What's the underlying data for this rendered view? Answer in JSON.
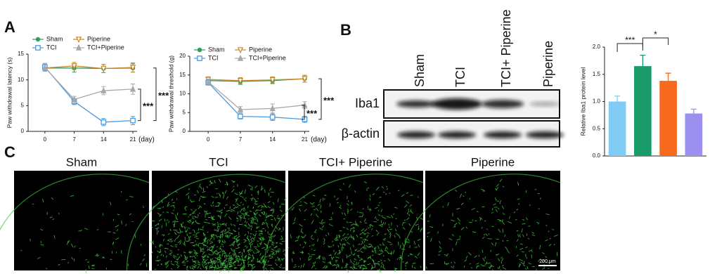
{
  "panel_labels": [
    "A",
    "B",
    "C"
  ],
  "chart_data": [
    {
      "type": "line",
      "ylabel": "Paw withdrawal latency (s)",
      "xlabel": "(day)",
      "x": [
        0,
        7,
        14,
        21
      ],
      "xlim": [
        -4,
        22
      ],
      "xticks": [
        0,
        7,
        14,
        21
      ],
      "ylim": [
        0,
        15
      ],
      "yticks": [
        0,
        5,
        10,
        15
      ],
      "series": [
        {
          "name": "Sham",
          "color": "#2e9e5b",
          "marker": "circle",
          "values": [
            12.3,
            12.3,
            12.2,
            12.3
          ],
          "errors": [
            0.6,
            0.8,
            0.8,
            0.8
          ]
        },
        {
          "name": "Piperine",
          "color": "#c8882a",
          "marker": "triangle-down",
          "values": [
            12.3,
            12.7,
            12.2,
            12.4
          ],
          "errors": [
            0.6,
            0.7,
            0.8,
            0.9
          ]
        },
        {
          "name": "TCI",
          "color": "#4a9be0",
          "marker": "square",
          "values": [
            12.5,
            5.8,
            1.8,
            2.1
          ],
          "errors": [
            0.7,
            0.6,
            0.7,
            0.8
          ]
        },
        {
          "name": "TCI+Piperine",
          "color": "#a8a8a8",
          "marker": "triangle-up",
          "values": [
            12.4,
            6.2,
            7.9,
            8.2
          ],
          "errors": [
            0.7,
            0.6,
            0.8,
            1.0
          ]
        }
      ],
      "annotations": [
        "***",
        "***"
      ]
    },
    {
      "type": "line",
      "ylabel": "Paw withdrawal threshold (g)",
      "xlabel": "(day)",
      "x": [
        0,
        7,
        14,
        21
      ],
      "xlim": [
        -4,
        22
      ],
      "xticks": [
        0,
        7,
        14,
        21
      ],
      "ylim": [
        0,
        20
      ],
      "yticks": [
        0,
        5,
        10,
        15,
        20
      ],
      "series": [
        {
          "name": "Sham",
          "color": "#2e9e5b",
          "marker": "circle",
          "values": [
            13.5,
            13.3,
            13.5,
            14.0
          ],
          "errors": [
            0.7,
            0.8,
            0.8,
            0.9
          ]
        },
        {
          "name": "Piperine",
          "color": "#c8882a",
          "marker": "triangle-down",
          "values": [
            13.8,
            13.5,
            13.7,
            14.0
          ],
          "errors": [
            0.7,
            0.8,
            0.8,
            0.9
          ]
        },
        {
          "name": "TCI",
          "color": "#4a9be0",
          "marker": "square",
          "values": [
            13.0,
            4.0,
            3.8,
            3.2
          ],
          "errors": [
            0.7,
            0.7,
            0.9,
            0.8
          ]
        },
        {
          "name": "TCI+Piperine",
          "color": "#a8a8a8",
          "marker": "triangle-up",
          "values": [
            13.2,
            5.8,
            6.1,
            7.0
          ],
          "errors": [
            0.7,
            0.8,
            1.2,
            0.9
          ]
        }
      ],
      "annotations": [
        "***",
        "***"
      ]
    },
    {
      "type": "bar",
      "ylabel": "Relative Iba1 protein level",
      "categories": [
        null,
        null,
        null,
        null
      ],
      "values": [
        1.0,
        1.65,
        1.38,
        0.78
      ],
      "errors": [
        0.1,
        0.2,
        0.14,
        0.08
      ],
      "colors": [
        "#7fcdf5",
        "#1a9b6a",
        "#f76a1e",
        "#9b8ff0"
      ],
      "ylim": [
        0,
        2.0
      ],
      "yticks": [
        {
          "value": 0,
          "label": "0.0"
        },
        {
          "value": 0.5,
          "label": "0.5"
        },
        {
          "value": 1.0,
          "label": "1.0"
        },
        {
          "value": 1.5,
          "label": "1.5"
        },
        {
          "value": 2.0,
          "label": "2.0"
        }
      ],
      "annotations": [
        "***",
        "*"
      ]
    }
  ],
  "blot": {
    "lanes": [
      "Sham",
      "TCI",
      "TCI+ Piperine",
      "Piperine"
    ],
    "rows": [
      "Iba1",
      "β-actin"
    ]
  },
  "micrographs": {
    "titles": [
      "Sham",
      "TCI",
      "TCI+ Piperine",
      "Piperine"
    ],
    "scale_bar": "200 μm"
  }
}
